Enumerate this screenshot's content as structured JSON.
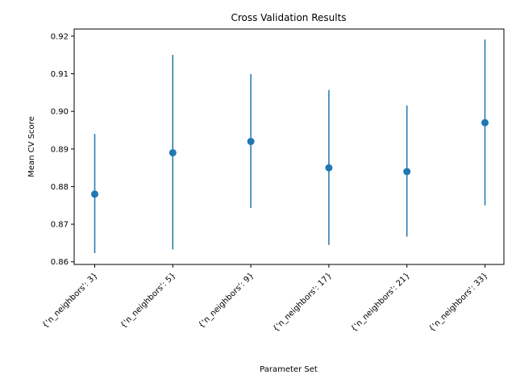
{
  "chart_data": {
    "type": "scatter",
    "title": "Cross Validation Results",
    "xlabel": "Parameter Set",
    "ylabel": "Mean CV Score",
    "categories": [
      "{'n_neighbors': 3}",
      "{'n_neighbors': 5}",
      "{'n_neighbors': 9}",
      "{'n_neighbors': 17}",
      "{'n_neighbors': 21}",
      "{'n_neighbors': 33}"
    ],
    "series": [
      {
        "values": [
          0.878,
          0.889,
          0.892,
          0.885,
          0.884,
          0.897
        ],
        "error_low": [
          0.8623,
          0.8633,
          0.8743,
          0.8645,
          0.8667,
          0.875
        ],
        "error_high": [
          0.894,
          0.915,
          0.9099,
          0.9057,
          0.9016,
          0.9191
        ]
      }
    ],
    "ylim": [
      0.8593,
      0.9219
    ],
    "yticks": [
      0.86,
      0.87,
      0.88,
      0.89,
      0.9,
      0.91,
      0.92
    ],
    "ytick_labels": [
      "0.86",
      "0.87",
      "0.88",
      "0.89",
      "0.90",
      "0.91",
      "0.92"
    ],
    "color": "#1f77b4",
    "grid": false
  }
}
